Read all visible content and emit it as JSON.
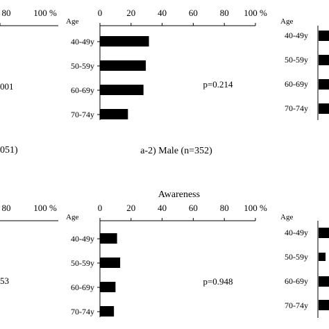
{
  "panels": {
    "left_top": {
      "pvalue": "001",
      "tick_80": "80",
      "tick_100": "100 %",
      "caption": "051)"
    },
    "left_bottom": {
      "pvalue": "53",
      "tick_80": "80",
      "tick_100": "100 %"
    },
    "right_top": {
      "age_labels": [
        "40-49y",
        "50-59y",
        "60-69y",
        "70-74y"
      ]
    },
    "right_bottom": {
      "age_labels": [
        "40-49y",
        "50-59y",
        "60-69y",
        "70-74y"
      ]
    }
  },
  "chart_data": [
    {
      "type": "bar",
      "orientation": "horizontal",
      "title": "",
      "ylabel": "Age",
      "xlabel": "",
      "xlim": [
        0,
        100
      ],
      "x_ticks": [
        "0",
        "20",
        "40",
        "60",
        "80",
        "100 %"
      ],
      "categories": [
        "40-49y",
        "50-59y",
        "60-69y",
        "70-74y"
      ],
      "values": [
        31.5,
        29.5,
        28,
        18
      ],
      "pvalue": "p=0.214",
      "caption": "a-2) Male (n=352)",
      "bar_color": "#000000"
    },
    {
      "type": "bar",
      "orientation": "horizontal",
      "title": "Awareness",
      "ylabel": "Age",
      "xlabel": "",
      "xlim": [
        0,
        100
      ],
      "x_ticks": [
        "0",
        "20",
        "40",
        "60",
        "80",
        "100 %"
      ],
      "categories": [
        "40-49y",
        "50-59y",
        "60-69y",
        "70-74y"
      ],
      "values": [
        11,
        13,
        10,
        9
      ],
      "pvalue": "p=0.948",
      "caption": "",
      "bar_color": "#000000"
    }
  ]
}
